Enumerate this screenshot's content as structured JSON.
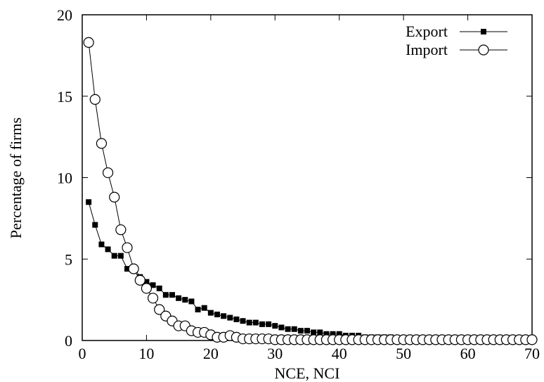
{
  "chart_data": {
    "type": "line",
    "title": "",
    "xlabel": "NCE, NCI",
    "ylabel": "Percentage of firms",
    "xlim": [
      0,
      70
    ],
    "ylim": [
      0,
      20
    ],
    "xticks": [
      0,
      10,
      20,
      30,
      40,
      50,
      60,
      70
    ],
    "yticks": [
      0,
      5,
      10,
      15,
      20
    ],
    "grid": false,
    "legend_position": "top-right",
    "series": [
      {
        "name": "Export",
        "marker": "filled-square",
        "color": "#000000",
        "x": [
          1,
          2,
          3,
          4,
          5,
          6,
          7,
          8,
          9,
          10,
          11,
          12,
          13,
          14,
          15,
          16,
          17,
          18,
          19,
          20,
          21,
          22,
          23,
          24,
          25,
          26,
          27,
          28,
          29,
          30,
          31,
          32,
          33,
          34,
          35,
          36,
          37,
          38,
          39,
          40,
          41,
          42,
          43,
          44,
          45,
          46,
          47,
          48,
          49,
          50,
          51,
          52,
          53,
          54,
          55,
          56,
          57,
          58,
          59,
          60,
          61,
          62,
          63,
          64,
          65,
          66,
          67,
          68,
          69,
          70
        ],
        "values": [
          8.5,
          7.1,
          5.9,
          5.6,
          5.2,
          5.2,
          4.4,
          4.5,
          3.9,
          3.6,
          3.4,
          3.2,
          2.8,
          2.8,
          2.6,
          2.5,
          2.4,
          1.9,
          2.0,
          1.7,
          1.6,
          1.5,
          1.4,
          1.3,
          1.2,
          1.1,
          1.1,
          1.0,
          1.0,
          0.9,
          0.8,
          0.7,
          0.7,
          0.6,
          0.6,
          0.5,
          0.5,
          0.4,
          0.4,
          0.4,
          0.3,
          0.3,
          0.3,
          0.2,
          0.2,
          0.2,
          0.2,
          0.2,
          0.15,
          0.15,
          0.1,
          0.1,
          0.1,
          0.1,
          0.1,
          0.1,
          0.1,
          0.1,
          0.08,
          0.08,
          0.05,
          0.05,
          0.05,
          0.05,
          0.05,
          0.04,
          0.04,
          0.03,
          0.03,
          0.02
        ]
      },
      {
        "name": "Import",
        "marker": "open-circle",
        "color": "#000000",
        "x": [
          1,
          2,
          3,
          4,
          5,
          6,
          7,
          8,
          9,
          10,
          11,
          12,
          13,
          14,
          15,
          16,
          17,
          18,
          19,
          20,
          21,
          22,
          23,
          24,
          25,
          26,
          27,
          28,
          29,
          30,
          31,
          32,
          33,
          34,
          35,
          36,
          37,
          38,
          39,
          40,
          41,
          42,
          43,
          44,
          45,
          46,
          47,
          48,
          49,
          50,
          51,
          52,
          53,
          54,
          55,
          56,
          57,
          58,
          59,
          60,
          61,
          62,
          63,
          64,
          65,
          66,
          67,
          68,
          69,
          70
        ],
        "values": [
          18.3,
          14.8,
          12.1,
          10.3,
          8.8,
          6.8,
          5.7,
          4.4,
          3.7,
          3.2,
          2.6,
          1.9,
          1.5,
          1.2,
          0.9,
          0.9,
          0.6,
          0.5,
          0.5,
          0.35,
          0.2,
          0.2,
          0.3,
          0.2,
          0.1,
          0.1,
          0.1,
          0.1,
          0.1,
          0.05,
          0.05,
          0.05,
          0.05,
          0.05,
          0.05,
          0.05,
          0.05,
          0.05,
          0.05,
          0.05,
          0.05,
          0.05,
          0.05,
          0.05,
          0.05,
          0.05,
          0.05,
          0.05,
          0.05,
          0.05,
          0.05,
          0.05,
          0.05,
          0.05,
          0.05,
          0.05,
          0.05,
          0.05,
          0.05,
          0.05,
          0.05,
          0.05,
          0.05,
          0.05,
          0.05,
          0.05,
          0.05,
          0.05,
          0.05,
          0.05
        ]
      }
    ]
  }
}
